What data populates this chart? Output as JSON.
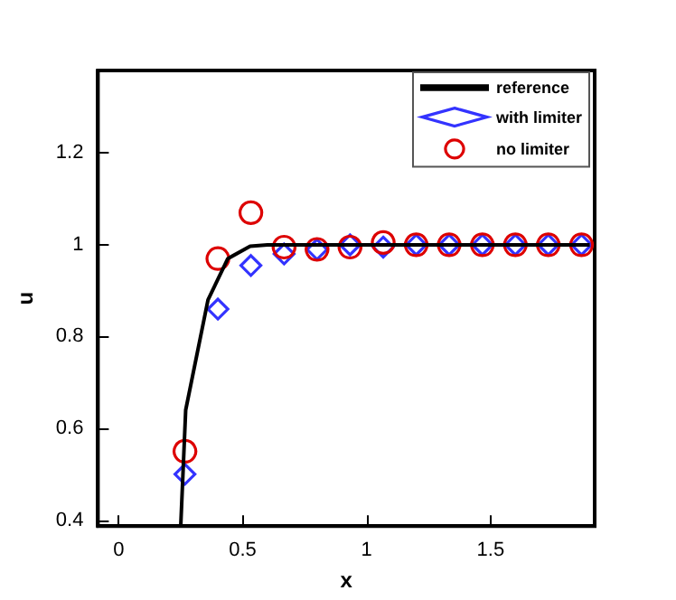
{
  "chart_data": {
    "type": "scatter",
    "xlabel": "x",
    "ylabel": "u",
    "xlim": [
      -0.084,
      1.92
    ],
    "ylim": [
      0.387,
      1.38
    ],
    "xticks": [
      0,
      0.5,
      1,
      1.5
    ],
    "yticks": [
      0.4,
      0.6,
      0.8,
      1,
      1.2
    ],
    "grid": false,
    "legend": "top right",
    "series": [
      {
        "name": "reference",
        "type": "line",
        "color": "#000000",
        "marker": "none",
        "line_style": "solid",
        "x": [
          0.25,
          0.27,
          0.36,
          0.44,
          0.53,
          0.6,
          0.8,
          1.2,
          1.6,
          1.9
        ],
        "values": [
          0.387,
          0.64,
          0.88,
          0.97,
          0.997,
          1,
          1,
          1,
          1,
          1
        ]
      },
      {
        "name": "with limiter",
        "color": "#3333ff",
        "marker": "diamond",
        "x": [
          0.267,
          0.4,
          0.533,
          0.667,
          0.8,
          0.933,
          1.067,
          1.2,
          1.333,
          1.467,
          1.6,
          1.733,
          1.867
        ],
        "values": [
          0.5,
          0.86,
          0.955,
          0.98,
          0.99,
          1.0,
          0.995,
          1,
          1,
          1,
          1,
          1,
          1
        ]
      },
      {
        "name": "no limiter",
        "color": "#dd0000",
        "marker": "circle",
        "x": [
          0.267,
          0.4,
          0.533,
          0.667,
          0.8,
          0.933,
          1.067,
          1.2,
          1.333,
          1.467,
          1.6,
          1.733,
          1.867
        ],
        "values": [
          0.55,
          0.97,
          1.07,
          0.995,
          0.99,
          0.995,
          1.005,
          1,
          1,
          1,
          1,
          1,
          1
        ]
      }
    ]
  }
}
